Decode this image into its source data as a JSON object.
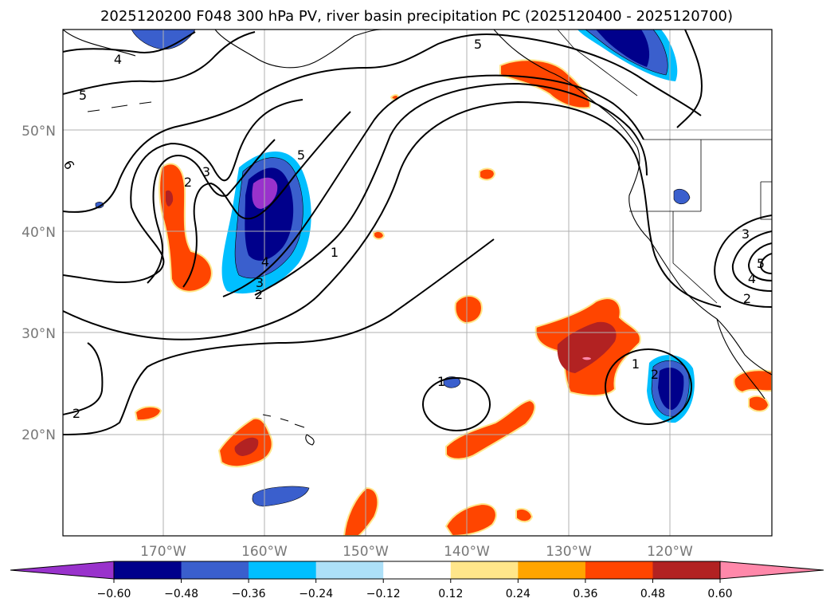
{
  "title": "2025120200 F048 300 hPa PV, river basin precipitation PC (2025120400 - 2025120700)",
  "map": {
    "lon_ticks": [
      "170°W",
      "160°W",
      "150°W",
      "140°W",
      "130°W",
      "120°W"
    ],
    "lat_ticks": [
      "50°N",
      "40°N",
      "30°N",
      "20°N"
    ],
    "gridlines": true,
    "contour_labels": [
      "4",
      "5",
      "5",
      "6",
      "3",
      "2",
      "5",
      "4",
      "3",
      "2",
      "1",
      "2",
      "1",
      "2",
      "3",
      "4",
      "5",
      "2",
      "1"
    ]
  },
  "colorbar": {
    "tick_labels": [
      "−0.60",
      "−0.48",
      "−0.36",
      "−0.24",
      "−0.12",
      "0.12",
      "0.24",
      "0.36",
      "0.48",
      "0.60"
    ],
    "colors": {
      "under": "#9932CC",
      "bins": [
        "#00008B",
        "#3A5FCD",
        "#00BFFF",
        "#ADE0F8",
        "#FFFFFF",
        "#FFE68A",
        "#FFA500",
        "#FF4500",
        "#B22222"
      ],
      "over": "#FF88AA"
    }
  },
  "colors": {
    "pos_fill": "#FF4500",
    "pos_strong": "#B22222",
    "pos_edge": "#FFE68A",
    "neg_fill": "#3A5FCD",
    "neg_strong": "#00008B",
    "neg_edge": "#00BFFF",
    "neg_extreme": "#9932CC",
    "contour": "#000000",
    "grid": "#b0b0b0"
  }
}
